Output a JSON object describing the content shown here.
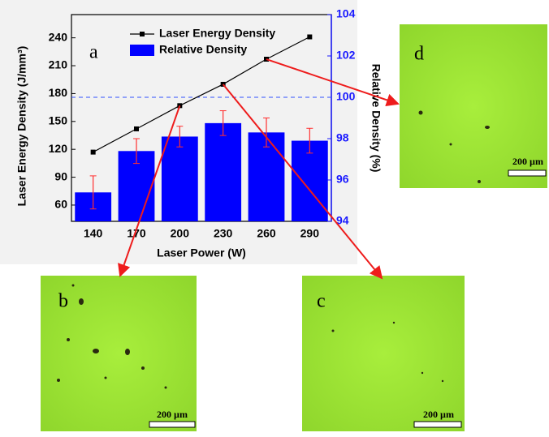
{
  "chart_data": {
    "type": "bar",
    "panel_label": "a",
    "x_label": "Laser Power (W)",
    "y_label": "Laser Energy Density (J/mm³)",
    "y2_label": "Relative Density (%)",
    "categories": [
      "140",
      "170",
      "200",
      "230",
      "260",
      "290"
    ],
    "series": [
      {
        "name": "Laser Energy Density",
        "type": "line",
        "color": "#000000",
        "values": [
          117,
          142,
          167,
          190,
          217,
          241
        ]
      },
      {
        "name": "Relative Density",
        "type": "bar",
        "axis": "y2",
        "color": "#0000ff",
        "values": [
          95.4,
          97.4,
          98.1,
          98.75,
          98.3,
          97.9
        ],
        "errors": [
          0.8,
          0.6,
          0.5,
          0.6,
          0.7,
          0.6
        ],
        "error_color": "#ff3030"
      }
    ],
    "ylim": [
      42.5,
      265
    ],
    "yticks": [
      60,
      90,
      120,
      150,
      180,
      210,
      240
    ],
    "y2lim": [
      94,
      104
    ],
    "y2ticks": [
      94,
      96,
      98,
      100,
      102,
      104
    ],
    "y2_color": "#1a1aff",
    "reference_line": {
      "axis": "y2",
      "value": 100,
      "color": "#3050ff"
    }
  },
  "micrographs": [
    {
      "label": "b",
      "scale": "200 µm"
    },
    {
      "label": "c",
      "scale": "200 µm"
    },
    {
      "label": "d",
      "scale": "200 µm"
    }
  ]
}
